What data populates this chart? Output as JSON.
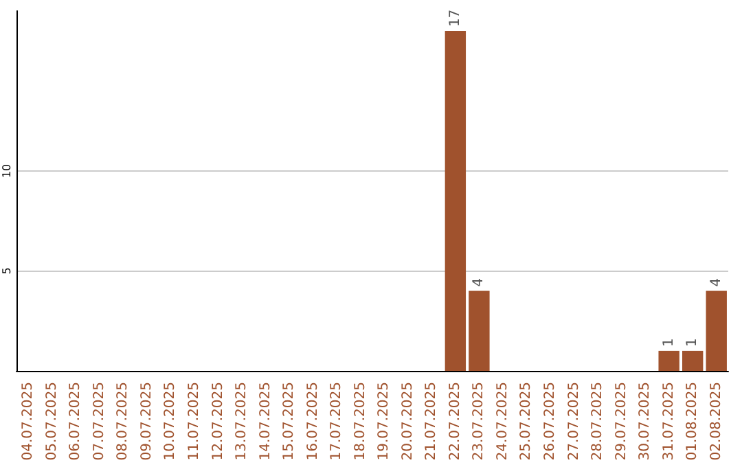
{
  "chart_data": {
    "type": "bar",
    "categories": [
      "04.07.2025",
      "05.07.2025",
      "06.07.2025",
      "07.07.2025",
      "08.07.2025",
      "09.07.2025",
      "10.07.2025",
      "11.07.2025",
      "12.07.2025",
      "13.07.2025",
      "14.07.2025",
      "15.07.2025",
      "16.07.2025",
      "17.07.2025",
      "18.07.2025",
      "19.07.2025",
      "20.07.2025",
      "21.07.2025",
      "22.07.2025",
      "23.07.2025",
      "24.07.2025",
      "25.07.2025",
      "26.07.2025",
      "27.07.2025",
      "28.07.2025",
      "29.07.2025",
      "30.07.2025",
      "31.07.2025",
      "01.08.2025",
      "02.08.2025"
    ],
    "values": [
      0,
      0,
      0,
      0,
      0,
      0,
      0,
      0,
      0,
      0,
      0,
      0,
      0,
      0,
      0,
      0,
      0,
      0,
      17,
      4,
      0,
      0,
      0,
      0,
      0,
      0,
      0,
      1,
      1,
      4
    ],
    "value_labels": [
      null,
      null,
      null,
      null,
      null,
      null,
      null,
      null,
      null,
      null,
      null,
      null,
      null,
      null,
      null,
      null,
      null,
      null,
      "17",
      "4",
      null,
      null,
      null,
      null,
      null,
      null,
      null,
      "1",
      "1",
      "4"
    ],
    "color": "#a0522d",
    "ylim": [
      0,
      18
    ],
    "yticks": [
      5,
      10
    ],
    "grid": "y"
  }
}
